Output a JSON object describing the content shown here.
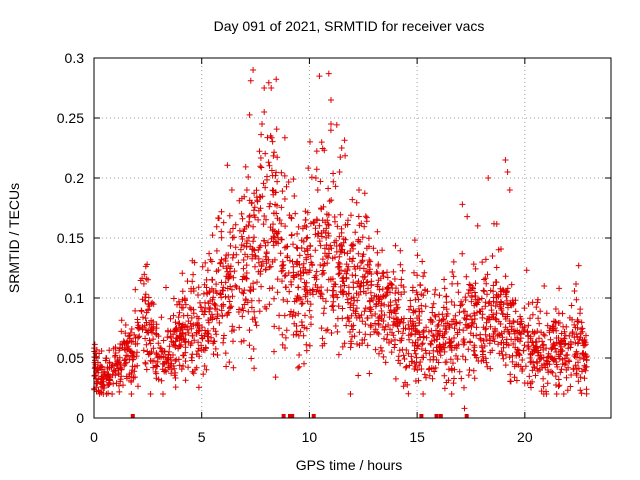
{
  "chart_data": {
    "type": "scatter",
    "title": "Day 091 of 2021, SRMTID for receiver vacs",
    "xlabel": "GPS time / hours",
    "ylabel": "SRMTID / TECUs",
    "xlim": [
      0,
      24
    ],
    "ylim": [
      0,
      0.3
    ],
    "xticks": [
      0,
      5,
      10,
      15,
      20
    ],
    "xtick_labels": [
      "0",
      "5",
      "10",
      "15",
      "20"
    ],
    "yticks": [
      0,
      0.05,
      0.1,
      0.15,
      0.2,
      0.25,
      0.3
    ],
    "ytick_labels": [
      "0",
      "0.05",
      "0.1",
      "0.15",
      "0.2",
      "0.25",
      "0.3"
    ],
    "grid": true,
    "marker": "plus",
    "color": "#e00000",
    "x_range_of_points": [
      0,
      22.9
    ],
    "envelope": {
      "description": "approximate median trend (hours, TECU) of the dense scatter",
      "x": [
        0,
        0.5,
        1,
        1.5,
        2,
        2.3,
        2.6,
        3,
        3.5,
        4,
        4.5,
        5,
        5.5,
        6,
        6.5,
        7,
        7.5,
        8,
        8.5,
        9,
        9.5,
        10,
        10.5,
        11,
        11.5,
        12,
        12.5,
        13,
        13.5,
        14,
        14.5,
        15,
        15.5,
        16,
        16.5,
        17,
        17.5,
        18,
        18.5,
        19,
        19.5,
        20,
        20.5,
        21,
        21.5,
        22,
        22.5,
        22.9
      ],
      "y": [
        0.035,
        0.03,
        0.04,
        0.05,
        0.055,
        0.09,
        0.07,
        0.05,
        0.05,
        0.07,
        0.08,
        0.075,
        0.09,
        0.11,
        0.12,
        0.13,
        0.145,
        0.16,
        0.14,
        0.13,
        0.1,
        0.12,
        0.14,
        0.13,
        0.12,
        0.1,
        0.11,
        0.1,
        0.09,
        0.08,
        0.075,
        0.07,
        0.065,
        0.06,
        0.07,
        0.075,
        0.08,
        0.07,
        0.09,
        0.075,
        0.07,
        0.06,
        0.055,
        0.05,
        0.06,
        0.055,
        0.06,
        0.05
      ]
    },
    "notable_points": [
      {
        "x": 7.9,
        "y": 0.275
      },
      {
        "x": 7.9,
        "y": 0.255
      },
      {
        "x": 7.8,
        "y": 0.245
      },
      {
        "x": 8.2,
        "y": 0.235
      },
      {
        "x": 10.9,
        "y": 0.287
      },
      {
        "x": 11.0,
        "y": 0.265
      },
      {
        "x": 11.0,
        "y": 0.245
      },
      {
        "x": 11.5,
        "y": 0.225
      },
      {
        "x": 11.4,
        "y": 0.205
      },
      {
        "x": 12.3,
        "y": 0.19
      },
      {
        "x": 6.4,
        "y": 0.19
      },
      {
        "x": 7.1,
        "y": 0.19
      },
      {
        "x": 10.3,
        "y": 0.2
      },
      {
        "x": 9.3,
        "y": 0.185
      },
      {
        "x": 17.1,
        "y": 0.178
      },
      {
        "x": 18.3,
        "y": 0.2
      },
      {
        "x": 19.1,
        "y": 0.215
      },
      {
        "x": 19.2,
        "y": 0.205
      },
      {
        "x": 19.3,
        "y": 0.19
      },
      {
        "x": 18.5,
        "y": 0.135
      },
      {
        "x": 22.5,
        "y": 0.127
      },
      {
        "x": 20.9,
        "y": 0.11
      },
      {
        "x": 17.2,
        "y": 0.008
      }
    ],
    "zero_markers_x": [
      1.8,
      8.8,
      9.1,
      9.2,
      10.2,
      15.2,
      15.9,
      16.1,
      17.3
    ]
  }
}
